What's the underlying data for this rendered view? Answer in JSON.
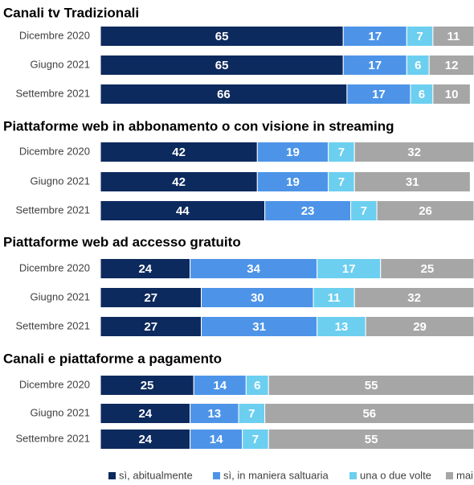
{
  "chart_data": [
    {
      "type": "bar",
      "orientation": "horizontal",
      "stacked": true,
      "title": "Canali tv Tradizionali",
      "categories": [
        "Dicembre 2020",
        "Giugno 2021",
        "Settembre 2021"
      ],
      "xlim": [
        0,
        100
      ],
      "series": [
        {
          "name": "sì, abitualmente",
          "color": "#0d2a5e",
          "values": [
            65,
            65,
            66
          ]
        },
        {
          "name": "sì, in maniera saltuaria",
          "color": "#4d94e8",
          "values": [
            17,
            17,
            17
          ]
        },
        {
          "name": "una o due volte",
          "color": "#6ccff0",
          "values": [
            7,
            6,
            6
          ]
        },
        {
          "name": "mai",
          "color": "#a6a6a6",
          "values": [
            11,
            12,
            10
          ]
        }
      ]
    },
    {
      "type": "bar",
      "orientation": "horizontal",
      "stacked": true,
      "title": "Piattaforme web in abbonamento o con visione in streaming",
      "categories": [
        "Dicembre 2020",
        "Giugno 2021",
        "Settembre 2021"
      ],
      "xlim": [
        0,
        100
      ],
      "series": [
        {
          "color": "#0d2a5e",
          "values": [
            42,
            42,
            44
          ]
        },
        {
          "color": "#4d94e8",
          "values": [
            19,
            19,
            23
          ]
        },
        {
          "color": "#6ccff0",
          "values": [
            7,
            7,
            7
          ]
        },
        {
          "color": "#a6a6a6",
          "values": [
            32,
            31,
            26
          ]
        }
      ]
    },
    {
      "type": "bar",
      "orientation": "horizontal",
      "stacked": true,
      "title": "Piattaforme web ad accesso gratuito",
      "categories": [
        "Dicembre 2020",
        "Giugno 2021",
        "Settembre 2021"
      ],
      "xlim": [
        0,
        100
      ],
      "series": [
        {
          "color": "#0d2a5e",
          "values": [
            24,
            27,
            27
          ]
        },
        {
          "color": "#4d94e8",
          "values": [
            34,
            30,
            31
          ]
        },
        {
          "color": "#6ccff0",
          "values": [
            17,
            11,
            13
          ]
        },
        {
          "color": "#a6a6a6",
          "values": [
            25,
            32,
            29
          ]
        }
      ]
    },
    {
      "type": "bar",
      "orientation": "horizontal",
      "stacked": true,
      "title": "Canali e piattaforme a pagamento",
      "categories": [
        "Dicembre 2020",
        "Giugno 2021",
        "Settembre 2021"
      ],
      "xlim": [
        0,
        100
      ],
      "series": [
        {
          "color": "#0d2a5e",
          "values": [
            25,
            24,
            24
          ]
        },
        {
          "color": "#4d94e8",
          "values": [
            14,
            13,
            14
          ]
        },
        {
          "color": "#6ccff0",
          "values": [
            6,
            7,
            7
          ]
        },
        {
          "color": "#a6a6a6",
          "values": [
            55,
            56,
            55
          ]
        }
      ]
    }
  ]
}
